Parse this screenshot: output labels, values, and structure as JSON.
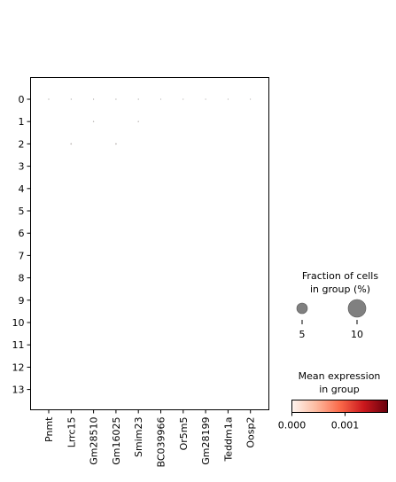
{
  "chart_data": {
    "type": "dotplot",
    "rows": [
      "0",
      "1",
      "2",
      "3",
      "4",
      "5",
      "6",
      "7",
      "8",
      "9",
      "10",
      "11",
      "12",
      "13"
    ],
    "columns": [
      "Pnmt",
      "Lrrc15",
      "Gm28510",
      "Gm16025",
      "Smim23",
      "BC039966",
      "Or5m5",
      "Gm28199",
      "Teddm1a",
      "Oosp2"
    ],
    "dots": [
      {
        "row": "0",
        "col": "Pnmt",
        "fraction": 0.05,
        "mean": 5e-05
      },
      {
        "row": "0",
        "col": "Lrrc15",
        "fraction": 0.05,
        "mean": 5e-05
      },
      {
        "row": "0",
        "col": "Gm28510",
        "fraction": 0.05,
        "mean": 5e-05
      },
      {
        "row": "0",
        "col": "Gm16025",
        "fraction": 0.05,
        "mean": 5e-05
      },
      {
        "row": "0",
        "col": "Smim23",
        "fraction": 0.05,
        "mean": 5e-05
      },
      {
        "row": "0",
        "col": "BC039966",
        "fraction": 0.04,
        "mean": 3e-05
      },
      {
        "row": "0",
        "col": "Or5m5",
        "fraction": 0.04,
        "mean": 3e-05
      },
      {
        "row": "0",
        "col": "Gm28199",
        "fraction": 0.04,
        "mean": 3e-05
      },
      {
        "row": "0",
        "col": "Teddm1a",
        "fraction": 0.04,
        "mean": 3e-05
      },
      {
        "row": "0",
        "col": "Oosp2",
        "fraction": 0.04,
        "mean": 3e-05
      },
      {
        "row": "1",
        "col": "Gm28510",
        "fraction": 0.06,
        "mean": 5e-05
      },
      {
        "row": "1",
        "col": "Smim23",
        "fraction": 0.06,
        "mean": 5e-05
      },
      {
        "row": "2",
        "col": "Lrrc15",
        "fraction": 0.08,
        "mean": 8e-05
      },
      {
        "row": "2",
        "col": "Gm16025",
        "fraction": 0.08,
        "mean": 8e-05
      }
    ],
    "size_legend": {
      "title": "Fraction of cells\nin group (%)",
      "values": [
        5,
        10
      ],
      "labels": [
        "5",
        "10"
      ]
    },
    "color_legend": {
      "title": "Mean expression\nin group",
      "range": [
        0,
        0.0018
      ],
      "ticks": [
        0,
        0.001
      ],
      "tick_labels": [
        "0.000",
        "0.001"
      ],
      "colormap": "Reds"
    }
  }
}
